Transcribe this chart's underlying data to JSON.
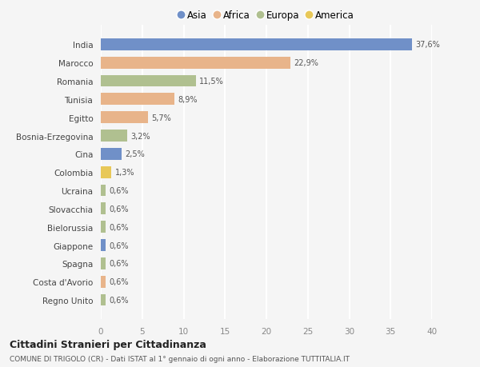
{
  "countries": [
    "India",
    "Marocco",
    "Romania",
    "Tunisia",
    "Egitto",
    "Bosnia-Erzegovina",
    "Cina",
    "Colombia",
    "Ucraina",
    "Slovacchia",
    "Bielorussia",
    "Giappone",
    "Spagna",
    "Costa d'Avorio",
    "Regno Unito"
  ],
  "values": [
    37.6,
    22.9,
    11.5,
    8.9,
    5.7,
    3.2,
    2.5,
    1.3,
    0.6,
    0.6,
    0.6,
    0.6,
    0.6,
    0.6,
    0.6
  ],
  "labels": [
    "37,6%",
    "22,9%",
    "11,5%",
    "8,9%",
    "5,7%",
    "3,2%",
    "2,5%",
    "1,3%",
    "0,6%",
    "0,6%",
    "0,6%",
    "0,6%",
    "0,6%",
    "0,6%",
    "0,6%"
  ],
  "continents": [
    "Asia",
    "Africa",
    "Europa",
    "Africa",
    "Africa",
    "Europa",
    "Asia",
    "America",
    "Europa",
    "Europa",
    "Europa",
    "Asia",
    "Europa",
    "Africa",
    "Europa"
  ],
  "colors": {
    "Asia": "#7090c8",
    "Africa": "#e8b48a",
    "Europa": "#b0c090",
    "America": "#e8c858"
  },
  "legend_order": [
    "Asia",
    "Africa",
    "Europa",
    "America"
  ],
  "title1": "Cittadini Stranieri per Cittadinanza",
  "title2": "COMUNE DI TRIGOLO (CR) - Dati ISTAT al 1° gennaio di ogni anno - Elaborazione TUTTITALIA.IT",
  "xlim": [
    0,
    40
  ],
  "xticks": [
    0,
    5,
    10,
    15,
    20,
    25,
    30,
    35,
    40
  ],
  "bg_color": "#f5f5f5",
  "grid_color": "#ffffff",
  "bar_height": 0.65
}
